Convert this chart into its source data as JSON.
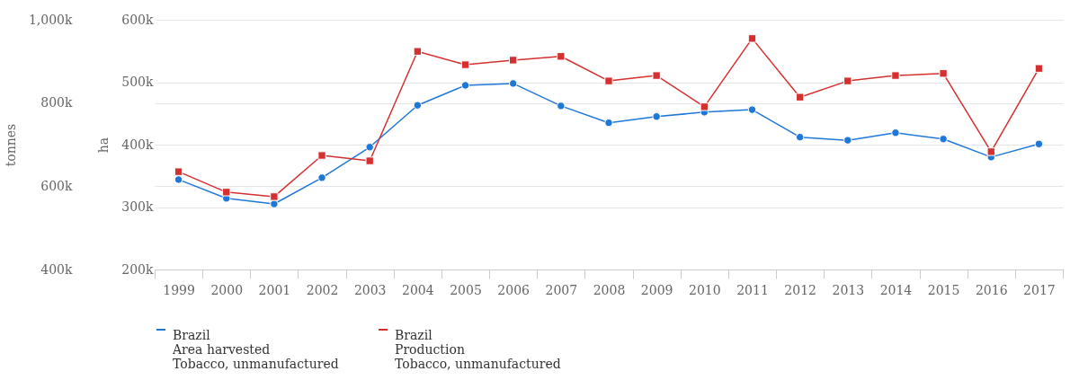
{
  "chart_data": {
    "type": "line",
    "categories": [
      "1999",
      "2000",
      "2001",
      "2002",
      "2003",
      "2004",
      "2005",
      "2006",
      "2007",
      "2008",
      "2009",
      "2010",
      "2011",
      "2012",
      "2013",
      "2014",
      "2015",
      "2016",
      "2017"
    ],
    "ylabel": "ha",
    "y2label": "tonnes",
    "ylim": [
      200000,
      600000
    ],
    "yticks": [
      {
        "value": 200000,
        "label": "200k"
      },
      {
        "value": 300000,
        "label": "300k"
      },
      {
        "value": 400000,
        "label": "400k"
      },
      {
        "value": 500000,
        "label": "500k"
      },
      {
        "value": 600000,
        "label": "600k"
      }
    ],
    "y2lim": [
      400000,
      1000000
    ],
    "y2ticks": [
      {
        "value": 400000,
        "label": "400k"
      },
      {
        "value": 600000,
        "label": "600k"
      },
      {
        "value": 800000,
        "label": "800k"
      },
      {
        "value": 1000000,
        "label": "1,000k"
      }
    ],
    "grid": "y",
    "legend": "bottom",
    "series": [
      {
        "name": "Brazil\nArea harvested\nTobacco, unmanufactured",
        "color": "#1f78d8",
        "marker": "circle",
        "values": [
          344000,
          314000,
          305000,
          347000,
          396000,
          463000,
          495000,
          498000,
          462000,
          435000,
          445000,
          452000,
          456000,
          412000,
          407000,
          419000,
          409000,
          380000,
          401000
        ]
      },
      {
        "name": "Brazil\nProduction\nTobacco, unmanufactured",
        "color": "#d62f2f",
        "marker": "square",
        "axis": "y2",
        "values": [
          635000,
          586000,
          575000,
          674000,
          661000,
          924000,
          892000,
          903000,
          912000,
          853000,
          866000,
          791000,
          955000,
          814000,
          853000,
          866000,
          871000,
          683000,
          883000
        ]
      }
    ]
  }
}
